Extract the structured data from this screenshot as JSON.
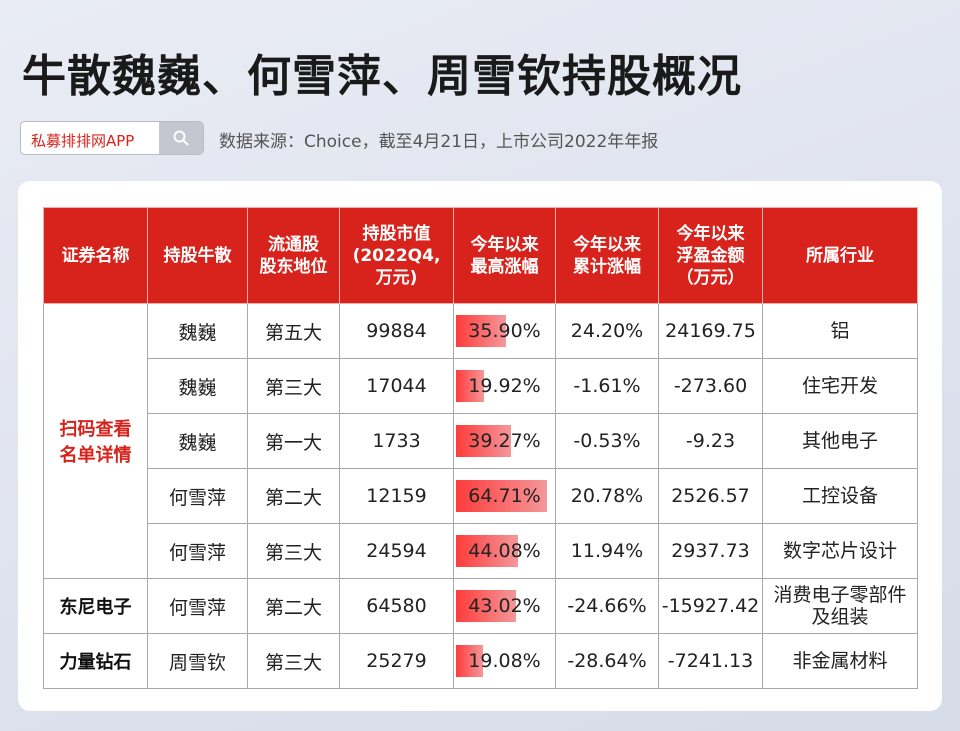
{
  "title": "牛散魏巍、何雪萍、周雪钦持股概况",
  "search": {
    "label": "私募排排网APP"
  },
  "source": "数据来源：Choice，截至4月21日，上市公司2022年年报",
  "table": {
    "headers": [
      [
        "证券名称"
      ],
      [
        "持股牛散"
      ],
      [
        "流通股",
        "股东地位"
      ],
      [
        "持股市值",
        "(2022Q4,",
        "万元)"
      ],
      [
        "今年以来",
        "最高涨幅"
      ],
      [
        "今年以来",
        "累计涨幅"
      ],
      [
        "今年以来",
        "浮盈金额",
        "（万元）"
      ],
      [
        "所属行业"
      ]
    ],
    "groups": [
      {
        "name": [
          "扫码查看",
          "名单详情"
        ],
        "highlight": true,
        "rowspan": 5
      },
      {
        "name": [
          "东尼电子"
        ],
        "highlight": false,
        "rowspan": 1
      },
      {
        "name": [
          "力量钻石"
        ],
        "highlight": false,
        "rowspan": 1
      }
    ],
    "rows": [
      {
        "holder": "魏巍",
        "position": "第五大",
        "value": "99884",
        "max_gain": "35.90%",
        "max_gain_pct": 35.9,
        "cum_gain": "24.20%",
        "profit": "24169.75",
        "industry": [
          "铝"
        ]
      },
      {
        "holder": "魏巍",
        "position": "第三大",
        "value": "17044",
        "max_gain": "19.92%",
        "max_gain_pct": 19.92,
        "cum_gain": "-1.61%",
        "profit": "-273.60",
        "industry": [
          "住宅开发"
        ]
      },
      {
        "holder": "魏巍",
        "position": "第一大",
        "value": "1733",
        "max_gain": "39.27%",
        "max_gain_pct": 39.27,
        "cum_gain": "-0.53%",
        "profit": "-9.23",
        "industry": [
          "其他电子"
        ]
      },
      {
        "holder": "何雪萍",
        "position": "第二大",
        "value": "12159",
        "max_gain": "64.71%",
        "max_gain_pct": 64.71,
        "cum_gain": "20.78%",
        "profit": "2526.57",
        "industry": [
          "工控设备"
        ]
      },
      {
        "holder": "何雪萍",
        "position": "第三大",
        "value": "24594",
        "max_gain": "44.08%",
        "max_gain_pct": 44.08,
        "cum_gain": "11.94%",
        "profit": "2937.73",
        "industry": [
          "数字芯片设计"
        ]
      },
      {
        "holder": "何雪萍",
        "position": "第二大",
        "value": "64580",
        "max_gain": "43.02%",
        "max_gain_pct": 43.02,
        "cum_gain": "-24.66%",
        "profit": "-15927.42",
        "industry": [
          "消费电子零部件",
          "及组装"
        ]
      },
      {
        "holder": "周雪钦",
        "position": "第三大",
        "value": "25279",
        "max_gain": "19.08%",
        "max_gain_pct": 19.08,
        "cum_gain": "-28.64%",
        "profit": "-7241.13",
        "industry": [
          "非金属材料"
        ]
      }
    ]
  }
}
